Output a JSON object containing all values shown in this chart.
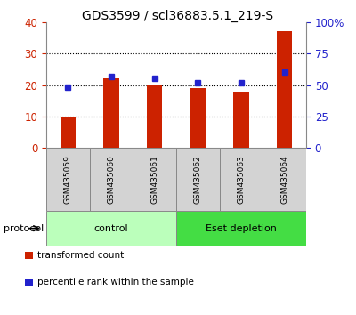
{
  "title": "GDS3599 / scl36883.5.1_219-S",
  "samples": [
    "GSM435059",
    "GSM435060",
    "GSM435061",
    "GSM435062",
    "GSM435063",
    "GSM435064"
  ],
  "transformed_counts": [
    10.0,
    22.0,
    20.0,
    19.0,
    18.0,
    37.0
  ],
  "percentile_ranks": [
    48,
    57,
    55,
    52,
    52,
    60
  ],
  "bar_color": "#CC2200",
  "square_color": "#2222CC",
  "ylim_left": [
    0,
    40
  ],
  "ylim_right": [
    0,
    100
  ],
  "yticks_left": [
    0,
    10,
    20,
    30,
    40
  ],
  "yticks_right": [
    0,
    25,
    50,
    75,
    100
  ],
  "ytick_labels_right": [
    "0",
    "25",
    "50",
    "75",
    "100%"
  ],
  "groups": [
    {
      "label": "control",
      "indices": [
        0,
        1,
        2
      ],
      "color": "#BBFFBB"
    },
    {
      "label": "Eset depletion",
      "indices": [
        3,
        4,
        5
      ],
      "color": "#44DD44"
    }
  ],
  "protocol_label": "protocol",
  "legend_items": [
    {
      "color": "#CC2200",
      "label": "transformed count"
    },
    {
      "color": "#2222CC",
      "label": "percentile rank within the sample"
    }
  ],
  "bar_width": 0.35,
  "background_color": "#ffffff",
  "tick_label_color_left": "#CC2200",
  "tick_label_color_right": "#2222CC",
  "title_fontsize": 10,
  "tick_fontsize": 8.5,
  "sample_label_fontsize": 6.5,
  "group_label_fontsize": 8,
  "legend_fontsize": 7.5,
  "protocol_fontsize": 8,
  "sample_box_color": "#D3D3D3",
  "sample_box_border": "#888888"
}
